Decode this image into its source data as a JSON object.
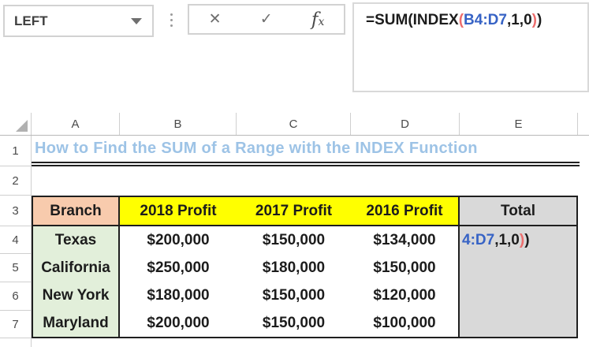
{
  "name_box": {
    "value": "LEFT"
  },
  "formula_bar": {
    "cancel_label": "✕",
    "enter_label": "✓",
    "insert_function_label": "fx",
    "formula": "=SUM(INDEX(B4:D7,1,0))",
    "parts": {
      "head": "=SUM(INDEX",
      "inner_open_paren": "(",
      "range_ref": "B4:D7",
      "args": ",1,0",
      "inner_close_paren": ")",
      "outer_close_paren": ")"
    }
  },
  "sheet": {
    "column_headers": [
      "A",
      "B",
      "C",
      "D",
      "E"
    ],
    "row_headers": [
      "1",
      "2",
      "3",
      "4",
      "5",
      "6",
      "7"
    ],
    "title": "How to Find the SUM of a Range with the INDEX Function",
    "header_row": {
      "branch": "Branch",
      "profit_2018": "2018 Profit",
      "profit_2017": "2017 Profit",
      "profit_2016": "2016 Profit",
      "total": "Total"
    },
    "rows": [
      {
        "branch": "Texas",
        "p2018": "$200,000",
        "p2017": "$150,000",
        "p2016": "$134,000"
      },
      {
        "branch": "California",
        "p2018": "$250,000",
        "p2017": "$180,000",
        "p2016": "$150,000"
      },
      {
        "branch": "New York",
        "p2018": "$180,000",
        "p2017": "$150,000",
        "p2016": "$120,000"
      },
      {
        "branch": "Maryland",
        "p2018": "$200,000",
        "p2017": "$150,000",
        "p2016": "$100,000"
      }
    ],
    "e4_overflow": {
      "range_tail": "4:D7",
      "args": ",1,0",
      "inner_close_paren": ")",
      "outer_close_paren": ")"
    }
  },
  "colors": {
    "title_blue": "#9DC3E6",
    "header_yellow": "#FFFF00",
    "branch_peach": "#F8CBAD",
    "branch_green": "#E2EFDA",
    "total_gray": "#D9D9D9",
    "formula_range_blue": "#3763C5",
    "formula_paren_red": "#ED6D6D",
    "table_border_black": "#1F1F1F",
    "gridline_gray": "#CFCFCF"
  }
}
